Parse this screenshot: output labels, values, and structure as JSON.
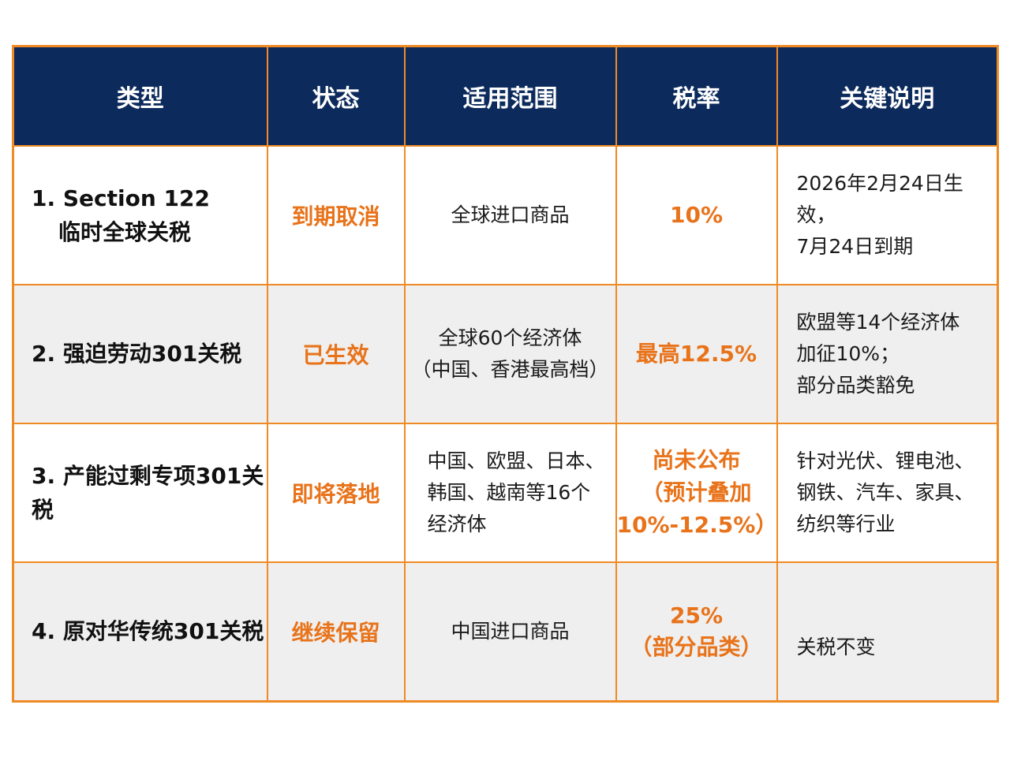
{
  "headers": [
    "类型",
    "状态",
    "适用范围",
    "税率",
    "关键说明"
  ],
  "rows": [
    {
      "type": [
        "1. Section 122",
        "临时全球关税"
      ],
      "status": "到期取消",
      "scope": [
        "全球进口商品"
      ],
      "rate": [
        "10%"
      ],
      "note": [
        "2026年2月24日生效，",
        "7月24日到期"
      ]
    },
    {
      "type": [
        "2. 强迫劳动301关税"
      ],
      "status": "已生效",
      "scope": [
        "全球60个经济体",
        "（中国、香港最高档）"
      ],
      "rate": [
        "最高12.5%"
      ],
      "note": [
        "欧盟等14个经济体",
        "加征10%；",
        "部分品类豁免"
      ]
    },
    {
      "type": [
        "3. 产能过剩专项301关税"
      ],
      "status": "即将落地",
      "scope": [
        "中国、欧盟、日本、",
        "韩国、越南等16个",
        "经济体"
      ],
      "rate": [
        "尚未公布",
        "（预计叠加",
        "10%-12.5%）"
      ],
      "note": [
        "针对光伏、锂电池、",
        "钢铁、汽车、家具、",
        "纺织等行业"
      ]
    },
    {
      "type": [
        "4. 原对华传统301关税"
      ],
      "status": "继续保留",
      "scope": [
        "中国进口商品"
      ],
      "rate": [
        "25%",
        "（部分品类）"
      ],
      "note": [
        "关税不变"
      ]
    }
  ],
  "colors": {
    "header_bg": "#0c2b5c",
    "border": "#f08a24",
    "accent_text": "#e8731a",
    "alt_row_bg": "#efefef"
  }
}
